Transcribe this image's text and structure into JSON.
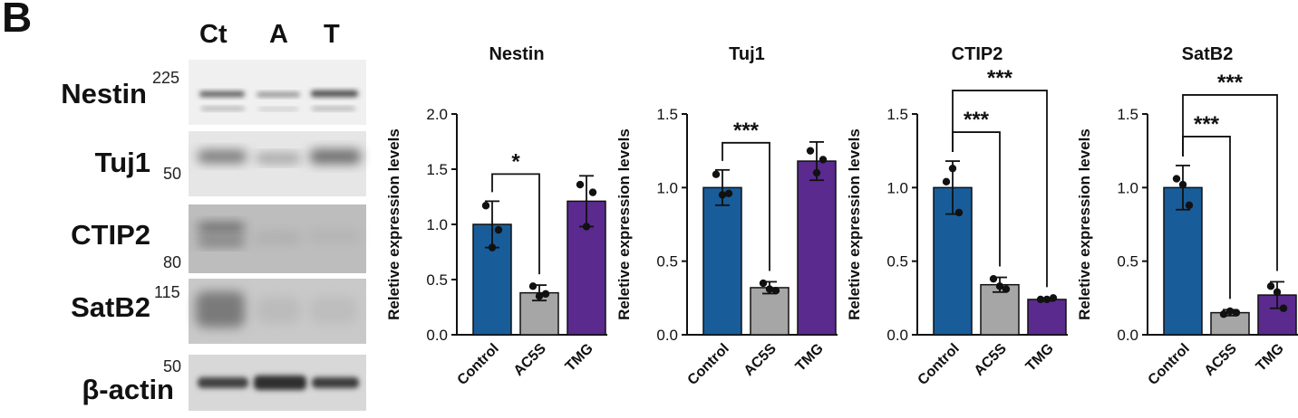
{
  "panel_label": "B",
  "blot": {
    "lanes": [
      "Ct",
      "A",
      "T"
    ],
    "rows": [
      {
        "protein": "Nestin",
        "mw": "225"
      },
      {
        "protein": "Tuj1",
        "mw": "50"
      },
      {
        "protein": "CTIP2",
        "mw": "80"
      },
      {
        "protein": "SatB2",
        "mw": "115"
      },
      {
        "protein": "β-actin",
        "mw": "50"
      }
    ]
  },
  "colors": {
    "Control": "#185d9a",
    "AC5S": "#a6a6a6",
    "TMG": "#5a2a8e"
  },
  "chart_data": [
    {
      "type": "bar",
      "title": "Nestin",
      "ylabel": "Reletive expression levels",
      "categories": [
        "Control",
        "AC5S",
        "TMG"
      ],
      "values": [
        1.0,
        0.38,
        1.21
      ],
      "errors": [
        0.21,
        0.07,
        0.23
      ],
      "points": [
        [
          1.17,
          0.95,
          0.79
        ],
        [
          0.44,
          0.37,
          0.35
        ],
        [
          1.36,
          1.29,
          0.98
        ]
      ],
      "ylim": [
        0,
        2.0
      ],
      "yticks": [
        "0.0",
        "0.5",
        "1.0",
        "1.5",
        "2.0"
      ],
      "significance": [
        {
          "from": 0,
          "to": 1,
          "label": "*"
        }
      ]
    },
    {
      "type": "bar",
      "title": "Tuj1",
      "ylabel": "Reletive expression levels",
      "categories": [
        "Control",
        "AC5S",
        "TMG"
      ],
      "values": [
        1.0,
        0.32,
        1.18
      ],
      "errors": [
        0.12,
        0.04,
        0.13
      ],
      "points": [
        [
          1.09,
          0.96,
          0.95
        ],
        [
          0.35,
          0.3,
          0.31
        ],
        [
          1.25,
          1.19,
          1.1
        ]
      ],
      "ylim": [
        0,
        1.5
      ],
      "yticks": [
        "0.0",
        "0.5",
        "1.0",
        "1.5"
      ],
      "significance": [
        {
          "from": 0,
          "to": 1,
          "label": "***"
        }
      ]
    },
    {
      "type": "bar",
      "title": "CTIP2",
      "ylabel": "Reletive expression levels",
      "categories": [
        "Control",
        "AC5S",
        "TMG"
      ],
      "values": [
        1.0,
        0.34,
        0.24
      ],
      "errors": [
        0.18,
        0.05,
        0.01
      ],
      "points": [
        [
          1.04,
          0.83,
          1.13
        ],
        [
          0.38,
          0.31,
          0.33
        ],
        [
          0.24,
          0.25,
          0.24
        ]
      ],
      "ylim": [
        0,
        1.5
      ],
      "yticks": [
        "0.0",
        "0.5",
        "1.0",
        "1.5"
      ],
      "significance": [
        {
          "from": 0,
          "to": 1,
          "label": "***"
        },
        {
          "from": 0,
          "to": 2,
          "label": "***"
        }
      ]
    },
    {
      "type": "bar",
      "title": "SatB2",
      "ylabel": "Reletive expression levels",
      "categories": [
        "Control",
        "AC5S",
        "TMG"
      ],
      "values": [
        1.0,
        0.15,
        0.27
      ],
      "errors": [
        0.15,
        0.02,
        0.09
      ],
      "points": [
        [
          1.06,
          0.88,
          1.02
        ],
        [
          0.14,
          0.15,
          0.16
        ],
        [
          0.33,
          0.18,
          0.29
        ]
      ],
      "ylim": [
        0,
        1.5
      ],
      "yticks": [
        "0.0",
        "0.5",
        "1.0",
        "1.5"
      ],
      "significance": [
        {
          "from": 0,
          "to": 1,
          "label": "***"
        },
        {
          "from": 0,
          "to": 2,
          "label": "***"
        }
      ]
    }
  ]
}
